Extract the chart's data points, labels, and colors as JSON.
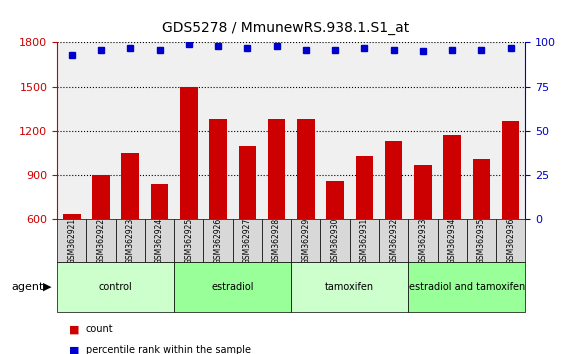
{
  "title": "GDS5278 / MmunewRS.938.1.S1_at",
  "samples": [
    "GSM362921",
    "GSM362922",
    "GSM362923",
    "GSM362924",
    "GSM362925",
    "GSM362926",
    "GSM362927",
    "GSM362928",
    "GSM362929",
    "GSM362930",
    "GSM362931",
    "GSM362932",
    "GSM362933",
    "GSM362934",
    "GSM362935",
    "GSM362936"
  ],
  "counts": [
    640,
    900,
    1050,
    840,
    1500,
    1280,
    1100,
    1280,
    1280,
    860,
    1030,
    1130,
    970,
    1170,
    1010,
    1270
  ],
  "percentiles": [
    93,
    96,
    97,
    96,
    99,
    98,
    97,
    98,
    96,
    96,
    97,
    96,
    95,
    96,
    96,
    97
  ],
  "bar_color": "#cc0000",
  "dot_color": "#0000cc",
  "ylim_left": [
    600,
    1800
  ],
  "ylim_right": [
    0,
    100
  ],
  "yticks_left": [
    600,
    900,
    1200,
    1500,
    1800
  ],
  "yticks_right": [
    0,
    25,
    50,
    75,
    100
  ],
  "groups": [
    {
      "label": "control",
      "start": 0,
      "end": 4,
      "color": "#ccffcc"
    },
    {
      "label": "estradiol",
      "start": 4,
      "end": 8,
      "color": "#99ff99"
    },
    {
      "label": "tamoxifen",
      "start": 8,
      "end": 12,
      "color": "#ccffcc"
    },
    {
      "label": "estradiol and tamoxifen",
      "start": 12,
      "end": 16,
      "color": "#99ff99"
    }
  ],
  "agent_label": "agent",
  "legend_count_label": "count",
  "legend_percentile_label": "percentile rank within the sample",
  "plot_bg_color": "#f0f0f0",
  "axis_label_color_left": "#cc0000",
  "axis_label_color_right": "#0000cc"
}
